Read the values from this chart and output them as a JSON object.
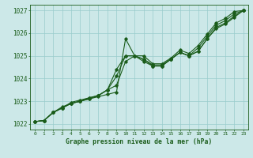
{
  "xlabel": "Graphe pression niveau de la mer (hPa)",
  "bg_color": "#cce8e8",
  "grid_color": "#99cccc",
  "line_color": "#1a5c1a",
  "xlim": [
    -0.5,
    23.5
  ],
  "ylim": [
    1021.75,
    1027.25
  ],
  "yticks": [
    1022,
    1023,
    1024,
    1025,
    1026,
    1027
  ],
  "xticks": [
    0,
    1,
    2,
    3,
    4,
    5,
    6,
    7,
    8,
    9,
    10,
    11,
    12,
    13,
    14,
    15,
    16,
    17,
    18,
    19,
    20,
    21,
    22,
    23
  ],
  "series": [
    [
      1022.1,
      1022.15,
      1022.5,
      1022.75,
      1022.9,
      1023.0,
      1023.1,
      1023.2,
      1023.3,
      1023.4,
      1025.75,
      1025.0,
      1025.0,
      1024.65,
      1024.65,
      1024.9,
      1025.25,
      1025.1,
      1025.45,
      1025.95,
      1026.45,
      1026.65,
      1026.95,
      1027.0
    ],
    [
      1022.1,
      1022.15,
      1022.5,
      1022.7,
      1022.9,
      1023.0,
      1023.1,
      1023.25,
      1023.5,
      1024.4,
      1025.0,
      1025.0,
      1024.85,
      1024.6,
      1024.6,
      1024.85,
      1025.15,
      1025.0,
      1025.35,
      1025.85,
      1026.35,
      1026.55,
      1026.85,
      1027.0
    ],
    [
      1022.1,
      1022.15,
      1022.5,
      1022.7,
      1022.9,
      1023.0,
      1023.15,
      1023.25,
      1023.5,
      1024.1,
      1025.0,
      1025.0,
      1024.85,
      1024.55,
      1024.55,
      1024.85,
      1025.15,
      1025.0,
      1025.2,
      1025.75,
      1026.25,
      1026.45,
      1026.75,
      1027.0
    ],
    [
      1022.1,
      1022.15,
      1022.5,
      1022.7,
      1022.95,
      1023.05,
      1023.15,
      1023.25,
      1023.5,
      1023.7,
      1024.75,
      1025.0,
      1024.75,
      1024.55,
      1024.55,
      1024.85,
      1025.15,
      1025.0,
      1025.2,
      1025.75,
      1026.2,
      1026.4,
      1026.7,
      1027.0
    ]
  ]
}
